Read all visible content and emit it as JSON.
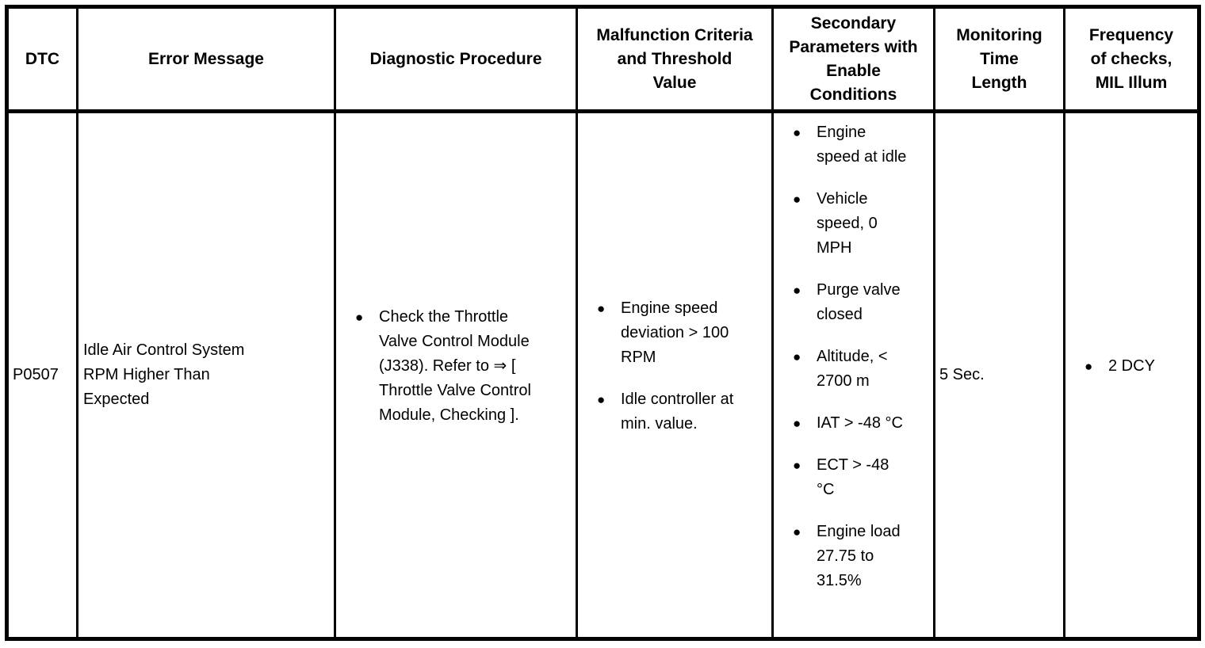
{
  "table": {
    "header": {
      "dtc": "DTC",
      "error_message": "Error Message",
      "diagnostic_procedure": "Diagnostic Procedure",
      "malfunction_criteria": "Malfunction Criteria\nand Threshold\nValue",
      "secondary_parameters": "Secondary\nParameters with\nEnable\nConditions",
      "monitoring_time": "Monitoring\nTime\nLength",
      "frequency": "Frequency\nof checks,\nMIL Illum"
    },
    "row": {
      "dtc": "P0507",
      "error_message": "Idle Air Control System\nRPM Higher Than\nExpected",
      "diagnostic_procedure": [
        "Check the Throttle\nValve Control Module\n(J338). Refer to ⇒ [\nThrottle Valve Control\nModule, Checking ]."
      ],
      "malfunction_criteria": [
        "Engine speed\ndeviation > 100\nRPM",
        "Idle controller at\nmin. value."
      ],
      "secondary_parameters": [
        "Engine\nspeed at idle",
        "Vehicle\nspeed, 0\nMPH",
        "Purge valve\nclosed",
        "Altitude, <\n2700 m",
        "IAT > -48 °C",
        "ECT > -48\n°C",
        "Engine load\n27.75 to\n31.5%"
      ],
      "monitoring_time": "5 Sec.",
      "frequency": [
        "2 DCY"
      ]
    },
    "colors": {
      "border": "#000000",
      "text": "#000000",
      "background": "#ffffff"
    }
  }
}
